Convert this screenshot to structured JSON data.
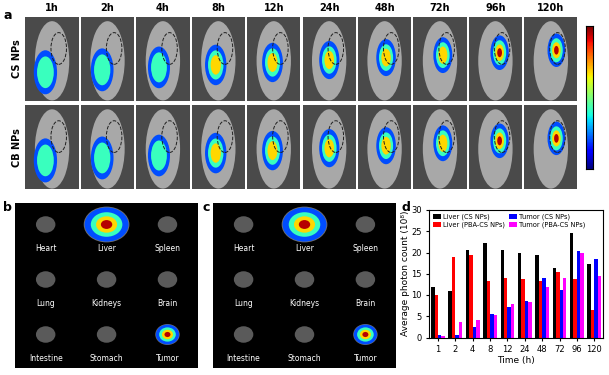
{
  "panel_a": {
    "panel_label": "a",
    "rows": [
      "CS NPs",
      "CB NPs"
    ],
    "times": [
      "1h",
      "2h",
      "4h",
      "8h",
      "12h",
      "24h",
      "48h",
      "72h",
      "96h",
      "120h"
    ]
  },
  "panel_b": {
    "panel_label": "b",
    "organs": [
      "Heart",
      "Liver",
      "Spleen",
      "Lung",
      "Kidneys",
      "Brain",
      "Intestine",
      "Stomach",
      "Tumor"
    ]
  },
  "panel_c": {
    "panel_label": "c",
    "organs": [
      "Heart",
      "Liver",
      "Spleen",
      "Lung",
      "Kidneys",
      "Brain",
      "Intestine",
      "Stomach",
      "Tumor"
    ]
  },
  "chart_data": {
    "panel_label": "d",
    "type": "bar",
    "x_label": "Time (h)",
    "y_label": "Average photon count (10⁸)",
    "categories": [
      "1",
      "2",
      "4",
      "8",
      "12",
      "24",
      "48",
      "72",
      "96",
      "120"
    ],
    "series": [
      {
        "name": "Liver (CS NPs)",
        "color": "#000000",
        "values": [
          11.8,
          11,
          20.7,
          22.3,
          20.7,
          19.8,
          19.3,
          16.3,
          24.7,
          17.2
        ]
      },
      {
        "name": "Liver (PBA-CS NPs)",
        "color": "#ff0000",
        "values": [
          10,
          19,
          19.5,
          13.2,
          14,
          13.8,
          13.2,
          15.5,
          13.8,
          6.5
        ]
      },
      {
        "name": "Tumor (CS NPs)",
        "color": "#0000ff",
        "values": [
          0.5,
          0.5,
          2.5,
          5.5,
          7.2,
          8.7,
          14,
          11.1,
          20.3,
          18.5
        ]
      },
      {
        "name": "Tumor (PBA-CS NPs)",
        "color": "#ff00ff",
        "values": [
          0.3,
          3.7,
          4.1,
          5.2,
          8,
          8.3,
          12,
          14,
          19.8,
          14.5
        ]
      }
    ],
    "ylim": [
      0,
      30
    ],
    "yticks": [
      0,
      5,
      10,
      15,
      20,
      25,
      30
    ],
    "legend": "upper left"
  }
}
